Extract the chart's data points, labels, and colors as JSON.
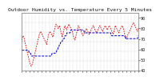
{
  "title": "Outdoor Humidity vs. Temperature Every 5 Minutes",
  "bg_color": "#ffffff",
  "plot_bg": "#ffffff",
  "grid_color": "#aaaaaa",
  "temp_color": "#dd0000",
  "humid_color": "#0000cc",
  "temp_values": [
    76,
    78,
    79,
    78,
    76,
    74,
    72,
    70,
    68,
    66,
    64,
    62,
    60,
    59,
    58,
    59,
    60,
    62,
    64,
    66,
    68,
    70,
    72,
    74,
    76,
    78,
    80,
    81,
    82,
    81,
    80,
    79,
    78,
    77,
    76,
    75,
    74,
    73,
    76,
    78,
    80,
    81,
    82,
    81,
    80,
    79,
    78,
    80,
    82,
    84,
    86,
    87,
    86,
    85,
    84,
    85,
    86,
    84,
    82,
    80,
    78,
    80,
    82,
    84,
    86,
    85,
    84,
    83,
    85,
    86,
    87,
    86,
    85,
    84,
    83,
    82,
    80,
    78,
    77,
    76,
    78,
    80,
    82,
    84,
    86,
    85,
    84,
    83,
    82,
    81,
    80,
    79,
    80,
    81,
    82,
    83,
    84,
    83,
    82,
    81,
    80,
    81,
    82,
    83,
    84,
    85,
    86,
    85,
    84,
    83,
    82,
    81,
    82,
    83,
    84,
    85,
    86,
    85,
    84,
    83,
    82,
    83,
    84,
    85,
    86,
    85,
    84,
    83,
    84,
    85,
    86,
    85,
    84,
    83,
    82,
    81,
    80,
    82,
    84,
    86,
    85,
    84,
    83,
    82,
    81,
    82,
    83,
    84,
    85,
    86,
    85,
    84,
    82,
    80,
    78,
    77,
    78,
    79,
    80,
    81,
    82,
    83,
    84,
    85,
    86,
    87,
    88,
    87,
    86,
    85,
    84,
    83,
    82,
    84
  ],
  "humid_values": [
    45,
    45,
    45,
    45,
    45,
    45,
    45,
    45,
    45,
    45,
    45,
    44,
    44,
    44,
    43,
    43,
    43,
    43,
    43,
    43,
    43,
    43,
    43,
    43,
    43,
    43,
    43,
    43,
    43,
    43,
    43,
    43,
    43,
    43,
    43,
    43,
    43,
    43,
    43,
    43,
    43,
    43,
    43,
    43,
    43,
    44,
    44,
    44,
    44,
    44,
    44,
    44,
    45,
    45,
    46,
    46,
    47,
    47,
    48,
    48,
    48,
    49,
    49,
    49,
    50,
    50,
    50,
    51,
    51,
    51,
    51,
    51,
    51,
    52,
    52,
    52,
    52,
    52,
    52,
    52,
    52,
    52,
    52,
    52,
    52,
    52,
    52,
    52,
    52,
    52,
    52,
    52,
    52,
    51,
    51,
    51,
    51,
    51,
    51,
    51,
    51,
    51,
    51,
    51,
    51,
    51,
    51,
    51,
    51,
    51,
    51,
    51,
    51,
    51,
    51,
    51,
    51,
    51,
    51,
    51,
    51,
    51,
    51,
    51,
    51,
    51,
    51,
    51,
    51,
    51,
    51,
    51,
    51,
    50,
    50,
    50,
    50,
    50,
    50,
    50,
    50,
    50,
    50,
    50,
    50,
    50,
    50,
    50,
    50,
    50,
    50,
    50,
    50,
    50,
    49,
    49,
    49,
    49,
    49,
    49,
    49,
    49,
    49,
    49,
    49,
    49,
    49,
    49,
    49,
    49,
    49,
    49,
    49,
    50
  ],
  "temp_ylim": [
    55,
    95
  ],
  "humid_ylim": [
    38,
    58
  ],
  "ytick_values": [
    90,
    80,
    70,
    60,
    50,
    40
  ],
  "ytick_labels": [
    "90",
    "80",
    "70",
    "60",
    "50",
    "40"
  ],
  "text_color": "#111111",
  "title_fontsize": 4.5,
  "tick_fontsize": 3.5,
  "n_xgrid": 35,
  "n_ygrid": 7
}
